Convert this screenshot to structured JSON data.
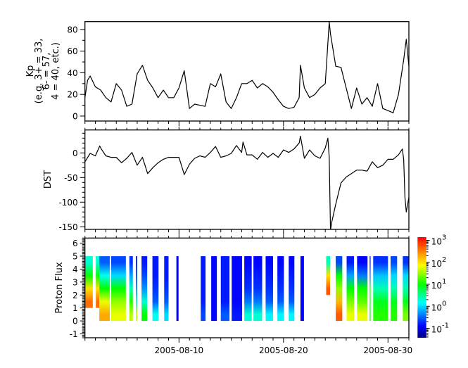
{
  "x_axis": {
    "range": [
      "2005-08-01 00:00",
      "2005-09-01 00:00"
    ],
    "tick_labels": [
      "2005-08-10",
      "2005-08-20",
      "2005-08-30"
    ]
  },
  "chart_data": [
    {
      "type": "line",
      "ylabel_lines": [
        "Kp",
        "(e.g. 3+ = 33,",
        "6- = 57,",
        "4 = 40, etc.)"
      ],
      "ylim": [
        -4.6,
        87.3
      ],
      "yticks": [
        "0",
        "20",
        "40",
        "60",
        "80"
      ],
      "color": "#000000",
      "points": [
        [
          "2005-08-01 00:00",
          17
        ],
        [
          "2005-08-01 06:00",
          33
        ],
        [
          "2005-08-01 12:00",
          37
        ],
        [
          "2005-08-02 00:00",
          27
        ],
        [
          "2005-08-02 12:00",
          24
        ],
        [
          "2005-08-03 00:00",
          17
        ],
        [
          "2005-08-03 12:00",
          13
        ],
        [
          "2005-08-04 00:00",
          30
        ],
        [
          "2005-08-04 12:00",
          24
        ],
        [
          "2005-08-05 00:00",
          9
        ],
        [
          "2005-08-05 12:00",
          11
        ],
        [
          "2005-08-06 00:00",
          39
        ],
        [
          "2005-08-06 12:00",
          47
        ],
        [
          "2005-08-07 00:00",
          33
        ],
        [
          "2005-08-07 12:00",
          26
        ],
        [
          "2005-08-08 00:00",
          17
        ],
        [
          "2005-08-08 12:00",
          24
        ],
        [
          "2005-08-09 00:00",
          17
        ],
        [
          "2005-08-09 12:00",
          17
        ],
        [
          "2005-08-10 00:00",
          26
        ],
        [
          "2005-08-10 12:00",
          42
        ],
        [
          "2005-08-11 00:00",
          7
        ],
        [
          "2005-08-11 12:00",
          11
        ],
        [
          "2005-08-12 00:00",
          10
        ],
        [
          "2005-08-12 12:00",
          9
        ],
        [
          "2005-08-13 00:00",
          30
        ],
        [
          "2005-08-13 12:00",
          27
        ],
        [
          "2005-08-14 00:00",
          39
        ],
        [
          "2005-08-14 12:00",
          13
        ],
        [
          "2005-08-15 00:00",
          7
        ],
        [
          "2005-08-15 12:00",
          17
        ],
        [
          "2005-08-16 00:00",
          30
        ],
        [
          "2005-08-16 12:00",
          30
        ],
        [
          "2005-08-17 00:00",
          33
        ],
        [
          "2005-08-17 12:00",
          26
        ],
        [
          "2005-08-18 00:00",
          30
        ],
        [
          "2005-08-18 12:00",
          27
        ],
        [
          "2005-08-19 00:00",
          22
        ],
        [
          "2005-08-19 12:00",
          15
        ],
        [
          "2005-08-20 00:00",
          9
        ],
        [
          "2005-08-20 12:00",
          7
        ],
        [
          "2005-08-21 00:00",
          8
        ],
        [
          "2005-08-21 12:00",
          17
        ],
        [
          "2005-08-21 15:00",
          47
        ],
        [
          "2005-08-22 00:00",
          26
        ],
        [
          "2005-08-22 12:00",
          17
        ],
        [
          "2005-08-23 00:00",
          20
        ],
        [
          "2005-08-23 12:00",
          26
        ],
        [
          "2005-08-24 00:00",
          30
        ],
        [
          "2005-08-24 09:00",
          87
        ],
        [
          "2005-08-24 12:00",
          76
        ],
        [
          "2005-08-25 00:00",
          46
        ],
        [
          "2005-08-25 12:00",
          45
        ],
        [
          "2005-08-26 00:00",
          26
        ],
        [
          "2005-08-26 12:00",
          7
        ],
        [
          "2005-08-27 00:00",
          26
        ],
        [
          "2005-08-27 12:00",
          11
        ],
        [
          "2005-08-28 00:00",
          17
        ],
        [
          "2005-08-28 12:00",
          9
        ],
        [
          "2005-08-29 00:00",
          30
        ],
        [
          "2005-08-29 12:00",
          7
        ],
        [
          "2005-08-30 00:00",
          5
        ],
        [
          "2005-08-30 12:00",
          3
        ],
        [
          "2005-08-31 00:00",
          20
        ],
        [
          "2005-08-31 12:00",
          52
        ],
        [
          "2005-08-31 18:00",
          71
        ],
        [
          "2005-09-01 00:00",
          46
        ]
      ]
    },
    {
      "type": "line",
      "ylabel": "DST",
      "ylim": [
        -155.3,
        46.6
      ],
      "yticks": [
        "-150",
        "-100",
        "-50",
        "0"
      ],
      "color": "#000000",
      "points": [
        [
          "2005-08-01 00:00",
          -18
        ],
        [
          "2005-08-01 12:00",
          -1
        ],
        [
          "2005-08-02 00:00",
          -6
        ],
        [
          "2005-08-02 10:00",
          14
        ],
        [
          "2005-08-02 12:00",
          10
        ],
        [
          "2005-08-03 00:00",
          -6
        ],
        [
          "2005-08-03 12:00",
          -9
        ],
        [
          "2005-08-04 00:00",
          -9
        ],
        [
          "2005-08-04 12:00",
          -20
        ],
        [
          "2005-08-05 00:00",
          -11
        ],
        [
          "2005-08-05 12:00",
          1
        ],
        [
          "2005-08-06 00:00",
          -25
        ],
        [
          "2005-08-06 12:00",
          -9
        ],
        [
          "2005-08-07 00:00",
          -42
        ],
        [
          "2005-08-07 12:00",
          -30
        ],
        [
          "2005-08-08 00:00",
          -20
        ],
        [
          "2005-08-08 12:00",
          -13
        ],
        [
          "2005-08-09 00:00",
          -9
        ],
        [
          "2005-08-09 12:00",
          -9
        ],
        [
          "2005-08-10 00:00",
          -9
        ],
        [
          "2005-08-10 12:00",
          -44
        ],
        [
          "2005-08-11 00:00",
          -23
        ],
        [
          "2005-08-11 12:00",
          -11
        ],
        [
          "2005-08-12 00:00",
          -6
        ],
        [
          "2005-08-12 12:00",
          -9
        ],
        [
          "2005-08-13 00:00",
          1
        ],
        [
          "2005-08-13 12:00",
          13
        ],
        [
          "2005-08-14 00:00",
          -9
        ],
        [
          "2005-08-14 12:00",
          -6
        ],
        [
          "2005-08-15 00:00",
          -1
        ],
        [
          "2005-08-15 12:00",
          15
        ],
        [
          "2005-08-16 00:00",
          1
        ],
        [
          "2005-08-16 03:00",
          22
        ],
        [
          "2005-08-16 12:00",
          -4
        ],
        [
          "2005-08-17 00:00",
          -4
        ],
        [
          "2005-08-17 12:00",
          -13
        ],
        [
          "2005-08-18 00:00",
          1
        ],
        [
          "2005-08-18 12:00",
          -9
        ],
        [
          "2005-08-19 00:00",
          -1
        ],
        [
          "2005-08-19 12:00",
          -9
        ],
        [
          "2005-08-20 00:00",
          6
        ],
        [
          "2005-08-20 12:00",
          1
        ],
        [
          "2005-08-21 00:00",
          8
        ],
        [
          "2005-08-21 12:00",
          20
        ],
        [
          "2005-08-21 15:00",
          34
        ],
        [
          "2005-08-22 00:00",
          -11
        ],
        [
          "2005-08-22 12:00",
          6
        ],
        [
          "2005-08-23 00:00",
          -6
        ],
        [
          "2005-08-23 12:00",
          -11
        ],
        [
          "2005-08-24 00:00",
          10
        ],
        [
          "2005-08-24 06:00",
          30
        ],
        [
          "2005-08-24 09:00",
          -9
        ],
        [
          "2005-08-24 12:00",
          -157
        ],
        [
          "2005-08-24 15:00",
          -140
        ],
        [
          "2005-08-25 00:00",
          -104
        ],
        [
          "2005-08-25 12:00",
          -61
        ],
        [
          "2005-08-26 00:00",
          -49
        ],
        [
          "2005-08-26 12:00",
          -42
        ],
        [
          "2005-08-27 00:00",
          -35
        ],
        [
          "2005-08-27 12:00",
          -35
        ],
        [
          "2005-08-28 00:00",
          -37
        ],
        [
          "2005-08-28 12:00",
          -18
        ],
        [
          "2005-08-29 00:00",
          -30
        ],
        [
          "2005-08-29 12:00",
          -25
        ],
        [
          "2005-08-30 00:00",
          -13
        ],
        [
          "2005-08-30 12:00",
          -13
        ],
        [
          "2005-08-31 00:00",
          -4
        ],
        [
          "2005-08-31 09:00",
          8
        ],
        [
          "2005-08-31 12:00",
          -13
        ],
        [
          "2005-08-31 15:00",
          -90
        ],
        [
          "2005-08-31 18:00",
          -120
        ],
        [
          "2005-09-01 00:00",
          -90
        ]
      ]
    },
    {
      "type": "heatmap",
      "ylabel": "Proton Flux",
      "ylim": [
        -1.3,
        6.4
      ],
      "yticks": [
        "-1",
        "0",
        "1",
        "2",
        "3",
        "4",
        "5",
        "6"
      ],
      "rows": [
        0,
        1,
        2,
        3,
        4
      ],
      "segments": [
        {
          "start": "2005-08-01 00:00",
          "end": "2005-08-01 18:00",
          "flux": [
            null,
            400,
            100,
            10,
            2
          ]
        },
        {
          "start": "2005-08-02 01:00",
          "end": "2005-08-02 09:00",
          "flux": [
            null,
            400,
            100,
            10,
            2
          ]
        },
        {
          "start": "2005-08-02 09:00",
          "end": "2005-08-03 09:00",
          "flux": [
            200,
            60,
            10,
            1.6,
            0.3
          ]
        },
        {
          "start": "2005-08-03 12:00",
          "end": "2005-08-04 22:00",
          "flux": [
            60,
            30,
            10,
            1,
            0.25
          ]
        },
        {
          "start": "2005-08-05 06:00",
          "end": "2005-08-05 14:00",
          "flux": [
            40,
            13,
            2.5,
            0.6,
            0.2
          ]
        },
        {
          "start": "2005-08-05 21:00",
          "end": "2005-08-06 00:00",
          "flux": [
            50,
            2,
            0.5,
            0.25,
            0.16
          ]
        },
        {
          "start": "2005-08-06 10:00",
          "end": "2005-08-06 23:00",
          "flux": [
            10,
            2,
            0.5,
            0.25,
            0.16
          ]
        },
        {
          "start": "2005-08-07 11:00",
          "end": "2005-08-08 01:00",
          "flux": [
            1.6,
            0.3,
            0.2,
            0.16,
            0.16
          ]
        },
        {
          "start": "2005-08-08 14:00",
          "end": "2005-08-09 00:00",
          "flux": [
            1,
            0.3,
            0.2,
            0.16,
            0.16
          ]
        },
        {
          "start": "2005-08-09 18:00",
          "end": "2005-08-09 23:00",
          "flux": [
            0.13,
            0.13,
            0.13,
            0.13,
            0.13
          ]
        },
        {
          "start": "2005-08-12 02:00",
          "end": "2005-08-12 13:00",
          "flux": [
            0.25,
            0.16,
            0.16,
            0.16,
            0.16
          ]
        },
        {
          "start": "2005-08-13 02:00",
          "end": "2005-08-13 15:00",
          "flux": [
            0.13,
            0.13,
            0.13,
            0.13,
            0.13
          ]
        },
        {
          "start": "2005-08-14 00:00",
          "end": "2005-08-14 20:00",
          "flux": [
            0.3,
            0.16,
            0.16,
            0.16,
            0.16
          ]
        },
        {
          "start": "2005-08-15 01:00",
          "end": "2005-08-16 01:00",
          "flux": [
            0.16,
            0.13,
            0.13,
            0.13,
            0.13
          ]
        },
        {
          "start": "2005-08-16 06:00",
          "end": "2005-08-16 23:00",
          "flux": [
            2,
            0.4,
            0.2,
            0.16,
            0.13
          ]
        },
        {
          "start": "2005-08-17 03:00",
          "end": "2005-08-17 23:00",
          "flux": [
            2,
            0.4,
            0.2,
            0.16,
            0.13
          ]
        },
        {
          "start": "2005-08-18 07:00",
          "end": "2005-08-19 00:00",
          "flux": [
            1.3,
            0.3,
            0.2,
            0.16,
            0.13
          ]
        },
        {
          "start": "2005-08-19 10:00",
          "end": "2005-08-20 01:00",
          "flux": [
            1.3,
            0.3,
            0.2,
            0.16,
            0.13
          ]
        },
        {
          "start": "2005-08-20 12:00",
          "end": "2005-08-21 01:00",
          "flux": [
            1.3,
            0.3,
            0.2,
            0.16,
            0.13
          ]
        },
        {
          "start": "2005-08-21 15:00",
          "end": "2005-08-21 23:00",
          "flux": [
            0.13,
            0.13,
            0.13,
            0.13,
            0.13
          ]
        },
        {
          "start": "2005-08-24 02:00",
          "end": "2005-08-24 11:00",
          "flux": [
            null,
            null,
            500,
            100,
            2.5
          ]
        },
        {
          "start": "2005-08-25 00:00",
          "end": "2005-08-25 15:00",
          "flux": [
            500,
            160,
            30,
            10,
            0.25
          ]
        },
        {
          "start": "2005-08-26 01:00",
          "end": "2005-08-26 18:00",
          "flux": [
            60,
            25,
            10,
            0.6,
            0.16
          ]
        },
        {
          "start": "2005-08-27 01:00",
          "end": "2005-08-28 01:00",
          "flux": [
            60,
            20,
            10,
            0.4,
            0.13
          ]
        },
        {
          "start": "2005-08-28 06:00",
          "end": "2005-08-28 08:00",
          "flux": [
            10,
            10,
            10,
            0.3,
            0.13
          ]
        },
        {
          "start": "2005-08-28 14:00",
          "end": "2005-08-30 00:00",
          "flux": [
            13,
            8,
            2.5,
            0.8,
            0.2
          ]
        },
        {
          "start": "2005-08-30 06:00",
          "end": "2005-08-30 21:00",
          "flux": [
            13,
            8,
            2.5,
            1,
            0.25
          ]
        },
        {
          "start": "2005-08-31 10:00",
          "end": "2005-09-01 00:00",
          "flux": [
            25,
            8,
            2.5,
            1,
            0.2
          ]
        }
      ],
      "colorbar": {
        "scale": "log",
        "range": [
          0.037,
          1400
        ],
        "colormap": "rainbow",
        "tick_labels": [
          [
            "10",
            "3"
          ],
          [
            "10",
            "2"
          ],
          [
            "10",
            "1"
          ],
          [
            "10",
            "0"
          ],
          [
            "10",
            "-1"
          ]
        ]
      }
    }
  ]
}
